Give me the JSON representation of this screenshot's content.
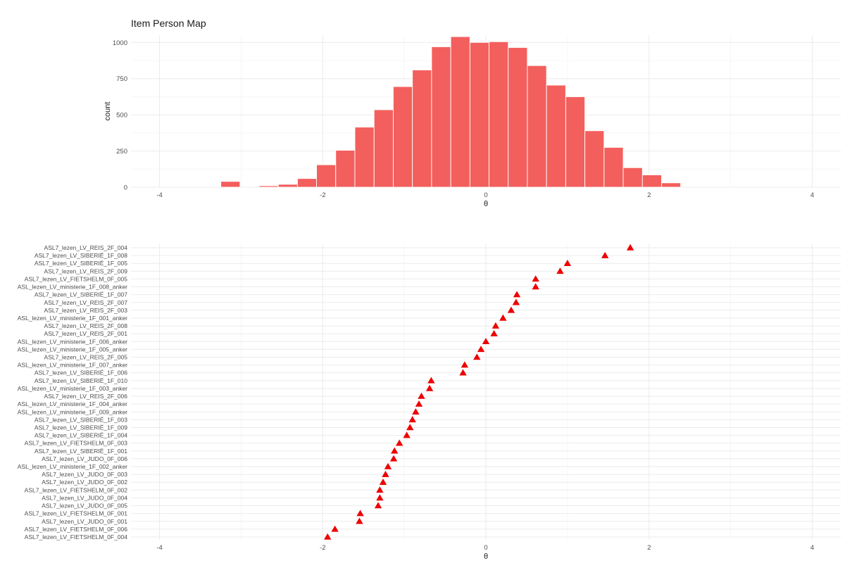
{
  "title": "Item Person Map",
  "chart_data": [
    {
      "type": "bar",
      "name": "histogram",
      "xlabel": "θ",
      "ylabel": "count",
      "xlim": [
        -4.35,
        4.35
      ],
      "ylim": [
        0,
        1050
      ],
      "xticks": [
        -4,
        -2,
        0,
        2,
        4
      ],
      "yticks": [
        0,
        250,
        500,
        750,
        1000
      ],
      "grid": true,
      "bin_width": 0.2348,
      "bars_x": [
        -3.131,
        -2.662,
        -2.427,
        -2.192,
        -1.958,
        -1.723,
        -1.488,
        -1.253,
        -1.018,
        -0.783,
        -0.548,
        -0.313,
        -0.078,
        0.157,
        0.391,
        0.626,
        0.861,
        1.096,
        1.331,
        1.566,
        1.801,
        2.036,
        2.27
      ],
      "bars_count": [
        40,
        10,
        20,
        60,
        155,
        255,
        415,
        535,
        695,
        810,
        970,
        1040,
        1000,
        1005,
        965,
        840,
        705,
        625,
        390,
        275,
        135,
        85,
        30
      ],
      "color": "#F35F5C"
    },
    {
      "type": "scatter",
      "name": "items",
      "xlabel": "θ",
      "xlim": [
        -4.35,
        4.35
      ],
      "xticks": [
        -4,
        -2,
        0,
        2,
        4
      ],
      "grid": true,
      "marker": "triangle",
      "color": "#EE0000",
      "items": [
        {
          "label": "ASL7_lezen_LV_REIS_2F_004",
          "x": 1.77
        },
        {
          "label": "ASL7_lezen_LV_SIBERIË_1F_008",
          "x": 1.46
        },
        {
          "label": "ASL7_lezen_LV_SIBERIË_1F_005",
          "x": 1.0
        },
        {
          "label": "ASL7_lezen_LV_REIS_2F_009",
          "x": 0.91
        },
        {
          "label": "ASL7_lezen_LV_FIETSHELM_0F_005",
          "x": 0.61
        },
        {
          "label": "ASL_lezen_LV_ministerie_1F_008_anker",
          "x": 0.61
        },
        {
          "label": "ASL7_lezen_LV_SIBERIË_1F_007",
          "x": 0.38
        },
        {
          "label": "ASL7_lezen_LV_REIS_2F_007",
          "x": 0.37
        },
        {
          "label": "ASL7_lezen_LV_REIS_2F_003",
          "x": 0.31
        },
        {
          "label": "ASL_lezen_LV_ministerie_1F_001_anker",
          "x": 0.21
        },
        {
          "label": "ASL7_lezen_LV_REIS_2F_008",
          "x": 0.12
        },
        {
          "label": "ASL7_lezen_LV_REIS_2F_001",
          "x": 0.1
        },
        {
          "label": "ASL_lezen_LV_ministerie_1F_006_anker",
          "x": 0.0
        },
        {
          "label": "ASL_lezen_LV_ministerie_1F_005_anker",
          "x": -0.06
        },
        {
          "label": "ASL7_lezen_LV_REIS_2F_005",
          "x": -0.11
        },
        {
          "label": "ASL_lezen_LV_ministerie_1F_007_anker",
          "x": -0.26
        },
        {
          "label": "ASL7_lezen_LV_SIBERIË_1F_006",
          "x": -0.28
        },
        {
          "label": "ASL7_lezen_LV_SIBERIË_1F_010",
          "x": -0.67
        },
        {
          "label": "ASL_lezen_LV_ministerie_1F_003_anker",
          "x": -0.69
        },
        {
          "label": "ASL7_lezen_LV_REIS_2F_006",
          "x": -0.79
        },
        {
          "label": "ASL_lezen_LV_ministerie_1F_004_anker",
          "x": -0.82
        },
        {
          "label": "ASL_lezen_LV_ministerie_1F_009_anker",
          "x": -0.86
        },
        {
          "label": "ASL7_lezen_LV_SIBERIË_1F_003",
          "x": -0.9
        },
        {
          "label": "ASL7_lezen_LV_SIBERIË_1F_009",
          "x": -0.93
        },
        {
          "label": "ASL7_lezen_LV_SIBERIË_1F_004",
          "x": -0.97
        },
        {
          "label": "ASL7_lezen_LV_FIETSHELM_0F_003",
          "x": -1.06
        },
        {
          "label": "ASL7_lezen_LV_SIBERIË_1F_001",
          "x": -1.12
        },
        {
          "label": "ASL7_lezen_LV_JUDO_0F_006",
          "x": -1.13
        },
        {
          "label": "ASL_lezen_LV_ministerie_1F_002_anker",
          "x": -1.2
        },
        {
          "label": "ASL7_lezen_LV_JUDO_0F_003",
          "x": -1.23
        },
        {
          "label": "ASL7_lezen_LV_JUDO_0F_002",
          "x": -1.26
        },
        {
          "label": "ASL7_lezen_LV_FIETSHELM_0F_002",
          "x": -1.3
        },
        {
          "label": "ASL7_lezen_LV_JUDO_0F_004",
          "x": -1.3
        },
        {
          "label": "ASL7_lezen_LV_JUDO_0F_005",
          "x": -1.32
        },
        {
          "label": "ASL7_lezen_LV_FIETSHELM_0F_001",
          "x": -1.54
        },
        {
          "label": "ASL7_lezen_LV_JUDO_0F_001",
          "x": -1.55
        },
        {
          "label": "ASL7_lezen_LV_FIETSHELM_0F_006",
          "x": -1.85
        },
        {
          "label": "ASL7_lezen_LV_FIETSHELM_0F_004",
          "x": -1.94
        }
      ]
    }
  ]
}
